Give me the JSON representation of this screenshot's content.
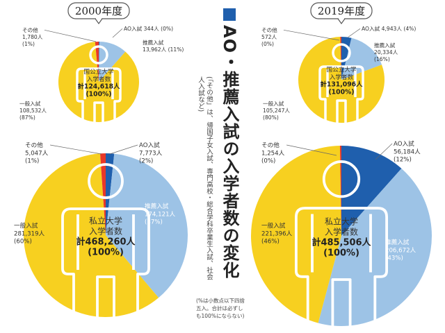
{
  "title": "AO・推薦入試の入学者数の変化",
  "subtitle": "(「その他」は、帰国子女入試、専門高校・総合学科卒業生入試、社会人入試など)",
  "note": "(%は小数点以下四捨五入。合計は必ずしも100%にならない)",
  "colors": {
    "ippan": "#f7d020",
    "suisen": "#9dc3e6",
    "ao": "#1f5fad",
    "sonota": "#e83828"
  },
  "chart_data": [
    {
      "type": "pie",
      "year": "2000年度",
      "center_lines": [
        "国公立大学",
        "入学者数"
      ],
      "total_label": "計124,618人",
      "total_pct": "(100%)",
      "slices": [
        {
          "name": "AO入試",
          "value": 344,
          "pct": 0,
          "text": "AO入試 344人 (0%)",
          "color": "#1f5fad"
        },
        {
          "name": "推薦入試",
          "value": 13962,
          "pct": 11,
          "lines": [
            "推薦入試",
            "13,962人 (11%)"
          ],
          "color": "#9dc3e6"
        },
        {
          "name": "一般入試",
          "value": 108532,
          "pct": 87,
          "lines": [
            "一般入試",
            "108,532人",
            "(87%)"
          ],
          "color": "#f7d020"
        },
        {
          "name": "その他",
          "value": 1780,
          "pct": 1,
          "lines": [
            "その他",
            "1,780人",
            "(1%)"
          ],
          "color": "#e83828"
        }
      ]
    },
    {
      "type": "pie",
      "year": "",
      "center_lines": [
        "私立大学",
        "入学者数"
      ],
      "total_label": "計468,260人",
      "total_pct": "(100%)",
      "slices": [
        {
          "name": "AO入試",
          "value": 7773,
          "pct": 2,
          "lines": [
            "AO入試",
            "7,773人",
            "(2%)"
          ],
          "color": "#1f5fad"
        },
        {
          "name": "推薦入試",
          "value": 174121,
          "pct": 37,
          "lines": [
            "推薦入試",
            "174,121人",
            "(37%)"
          ],
          "color": "#9dc3e6"
        },
        {
          "name": "一般入試",
          "value": 281319,
          "pct": 60,
          "lines": [
            "一般入試",
            "281,319人",
            "(60%)"
          ],
          "color": "#f7d020"
        },
        {
          "name": "その他",
          "value": 5047,
          "pct": 1,
          "lines": [
            "その他",
            "5,047人",
            "(1%)"
          ],
          "color": "#e83828"
        }
      ]
    },
    {
      "type": "pie",
      "year": "2019年度",
      "center_lines": [
        "国公立大学",
        "入学者数"
      ],
      "total_label": "計131,096人",
      "total_pct": "(100%)",
      "slices": [
        {
          "name": "AO入試",
          "value": 4943,
          "pct": 4,
          "text": "AO入試 4,943人 (4%)",
          "color": "#1f5fad"
        },
        {
          "name": "推薦入試",
          "value": 20334,
          "pct": 16,
          "lines": [
            "推薦入試",
            "20,334人",
            "(16%)"
          ],
          "color": "#9dc3e6"
        },
        {
          "name": "一般入試",
          "value": 105247,
          "pct": 80,
          "lines": [
            "一般入試",
            "105,247人",
            "(80%)"
          ],
          "color": "#f7d020"
        },
        {
          "name": "その他",
          "value": 572,
          "pct": 0,
          "lines": [
            "その他",
            "572人",
            "(0%)"
          ],
          "color": "#e83828"
        }
      ]
    },
    {
      "type": "pie",
      "year": "",
      "center_lines": [
        "私立大学",
        "入学者数"
      ],
      "total_label": "計485,506人",
      "total_pct": "(100%)",
      "slices": [
        {
          "name": "AO入試",
          "value": 56184,
          "pct": 12,
          "lines": [
            "AO入試",
            "56,184人",
            "(12%)"
          ],
          "color": "#1f5fad"
        },
        {
          "name": "推薦入試",
          "value": 206672,
          "pct": 43,
          "lines": [
            "推薦入試",
            "206,672人",
            "(43%)"
          ],
          "color": "#9dc3e6"
        },
        {
          "name": "一般入試",
          "value": 221396,
          "pct": 46,
          "lines": [
            "一般入試",
            "221,396人",
            "(46%)"
          ],
          "color": "#f7d020"
        },
        {
          "name": "その他",
          "value": 1254,
          "pct": 0,
          "lines": [
            "その他",
            "1,254人",
            "(0%)"
          ],
          "color": "#e83828"
        }
      ]
    }
  ]
}
